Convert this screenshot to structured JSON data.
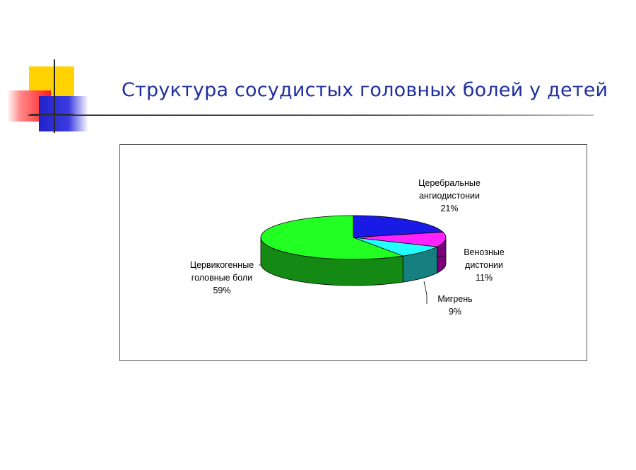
{
  "slide": {
    "title": "Структура сосудистых головных болей у детей"
  },
  "chart_data": {
    "type": "pie",
    "style": "3d-exploded-none",
    "slices": [
      {
        "name": "Церебральные ангиодистонии",
        "label_lines": [
          "Церебральные",
          "ангиодистонии"
        ],
        "value": 21,
        "value_label": "21%",
        "color": "#1a1ae6",
        "side_color": "#10108f"
      },
      {
        "name": "Венозные дистонии",
        "label_lines": [
          "Венозные",
          "дистонии"
        ],
        "value": 11,
        "value_label": "11%",
        "color": "#ff22ff",
        "side_color": "#7a007a"
      },
      {
        "name": "Мигрень",
        "label_lines": [
          "Мигрень"
        ],
        "value": 9,
        "value_label": "9%",
        "color": "#22ffff",
        "side_color": "#168080"
      },
      {
        "name": "Цервикогенные головные боли",
        "label_lines": [
          "Цервикогенные",
          "головные боли"
        ],
        "value": 59,
        "value_label": "59%",
        "color": "#22ff22",
        "side_color": "#148a14"
      }
    ],
    "legend": "none",
    "labels_show_percent": true
  }
}
